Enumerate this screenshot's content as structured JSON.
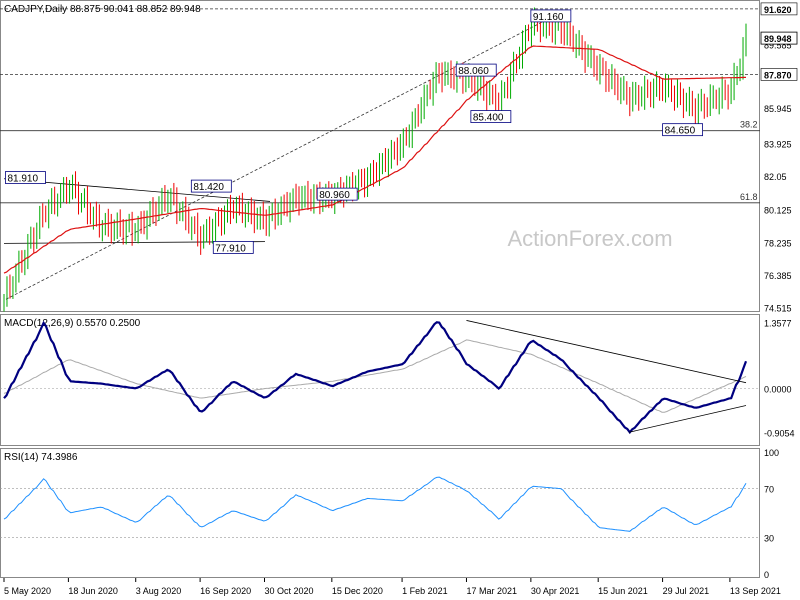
{
  "chart_data": [
    {
      "type": "line",
      "panel": "price",
      "title": "CADJPY,Daily",
      "ohlc_readout": "88.875 90.041 88.852 89.948",
      "watermark": "ActionForex.com",
      "ylim": [
        74.5,
        91.9
      ],
      "y_ticks": [
        "91.620",
        "89.948",
        "89.585",
        "87.870",
        "85.945",
        "83.925",
        "82.05",
        "80.125",
        "78.235",
        "76.385",
        "74.515"
      ],
      "current_price_label": "89.948",
      "price_tags": [
        "91.620",
        "87.870"
      ],
      "annotations": [
        "91.160",
        "88.060",
        "85.400",
        "84.650",
        "81.910",
        "81.420",
        "80.960",
        "77.910"
      ],
      "fib_labels": [
        "38.2",
        "61.8"
      ],
      "horizontal_levels": [
        91.62,
        87.87,
        84.65,
        80.52
      ],
      "series": [
        {
          "name": "CADJPY",
          "x": [
            "2020-05-05",
            "2020-06-01",
            "2020-06-18",
            "2020-07-10",
            "2020-08-03",
            "2020-08-25",
            "2020-09-16",
            "2020-10-08",
            "2020-10-30",
            "2020-11-20",
            "2020-12-15",
            "2021-01-08",
            "2021-02-01",
            "2021-02-25",
            "2021-03-17",
            "2021-04-08",
            "2021-04-30",
            "2021-05-20",
            "2021-06-15",
            "2021-07-06",
            "2021-07-29",
            "2021-08-20",
            "2021-09-13",
            "2021-09-24"
          ],
          "y": [
            75.0,
            80.0,
            81.5,
            79.2,
            79.0,
            81.0,
            78.5,
            80.3,
            79.5,
            80.8,
            80.9,
            81.9,
            84.0,
            87.9,
            87.7,
            86.2,
            90.8,
            90.5,
            88.2,
            86.5,
            87.2,
            85.9,
            87.0,
            89.9
          ]
        },
        {
          "name": "MA",
          "x": [
            "2020-05-05",
            "2020-06-18",
            "2020-08-03",
            "2020-09-16",
            "2020-10-30",
            "2020-12-15",
            "2021-02-01",
            "2021-03-17",
            "2021-04-30",
            "2021-06-15",
            "2021-07-29",
            "2021-09-24"
          ],
          "y": [
            76.5,
            79.0,
            79.6,
            80.2,
            79.8,
            80.4,
            82.5,
            86.4,
            89.5,
            89.3,
            87.6,
            87.7
          ]
        }
      ]
    },
    {
      "type": "line",
      "panel": "macd",
      "title": "MACD(12,26,9) 0.5570 0.2500",
      "ylim": [
        -1.1,
        1.45
      ],
      "y_ticks": [
        "1.3577",
        "0.0000",
        "-0.9054"
      ],
      "series": [
        {
          "name": "MACD",
          "x": [
            "2020-05-05",
            "2020-06-01",
            "2020-06-18",
            "2020-07-10",
            "2020-08-03",
            "2020-08-25",
            "2020-09-16",
            "2020-10-08",
            "2020-10-30",
            "2020-11-20",
            "2020-12-15",
            "2021-01-08",
            "2021-02-01",
            "2021-02-25",
            "2021-03-17",
            "2021-04-08",
            "2021-04-30",
            "2021-05-20",
            "2021-06-15",
            "2021-07-06",
            "2021-07-29",
            "2021-08-20",
            "2021-09-13",
            "2021-09-24"
          ],
          "y": [
            -0.2,
            1.35,
            0.15,
            0.1,
            0.0,
            0.4,
            -0.5,
            0.15,
            -0.2,
            0.3,
            0.05,
            0.35,
            0.5,
            1.4,
            0.5,
            0.0,
            1.0,
            0.6,
            -0.2,
            -0.9,
            -0.2,
            -0.4,
            -0.2,
            0.56
          ]
        },
        {
          "name": "Signal",
          "x": [
            "2020-05-05",
            "2020-06-18",
            "2020-08-03",
            "2020-09-16",
            "2020-10-30",
            "2020-12-15",
            "2021-02-01",
            "2021-03-17",
            "2021-04-30",
            "2021-06-15",
            "2021-07-29",
            "2021-09-24"
          ],
          "y": [
            -0.1,
            0.6,
            0.1,
            -0.2,
            0.0,
            0.15,
            0.4,
            1.0,
            0.7,
            0.1,
            -0.5,
            0.25
          ]
        }
      ]
    },
    {
      "type": "line",
      "panel": "rsi",
      "title": "RSI(14) 74.3986",
      "ylim": [
        0,
        100
      ],
      "y_ticks": [
        "100",
        "70",
        "30",
        "0"
      ],
      "series": [
        {
          "name": "RSI",
          "x": [
            "2020-05-05",
            "2020-06-01",
            "2020-06-18",
            "2020-07-10",
            "2020-08-03",
            "2020-08-25",
            "2020-09-16",
            "2020-10-08",
            "2020-10-30",
            "2020-11-20",
            "2020-12-15",
            "2021-01-08",
            "2021-02-01",
            "2021-02-25",
            "2021-03-17",
            "2021-04-08",
            "2021-04-30",
            "2021-05-20",
            "2021-06-15",
            "2021-07-06",
            "2021-07-29",
            "2021-08-20",
            "2021-09-13",
            "2021-09-24"
          ],
          "y": [
            45,
            78,
            50,
            55,
            42,
            65,
            38,
            52,
            43,
            65,
            52,
            62,
            60,
            80,
            68,
            45,
            72,
            70,
            38,
            35,
            55,
            40,
            55,
            74.4
          ]
        }
      ]
    }
  ],
  "x_axis": {
    "labels": [
      "5 May 2020",
      "18 Jun 2020",
      "3 Aug 2020",
      "16 Sep 2020",
      "30 Oct 2020",
      "15 Dec 2020",
      "1 Feb 2021",
      "17 Mar 2021",
      "30 Apr 2021",
      "15 Jun 2021",
      "29 Jul 2021",
      "13 Sep 2021"
    ]
  },
  "colors": {
    "price_up": "#00aa00",
    "price_down": "#ee0000",
    "ma": "#dd1111",
    "macd": "#000080",
    "signal": "#aaaaaa",
    "rsi": "#1e90ff",
    "label_border": "#000080",
    "tag_bg": "#ffffff"
  }
}
